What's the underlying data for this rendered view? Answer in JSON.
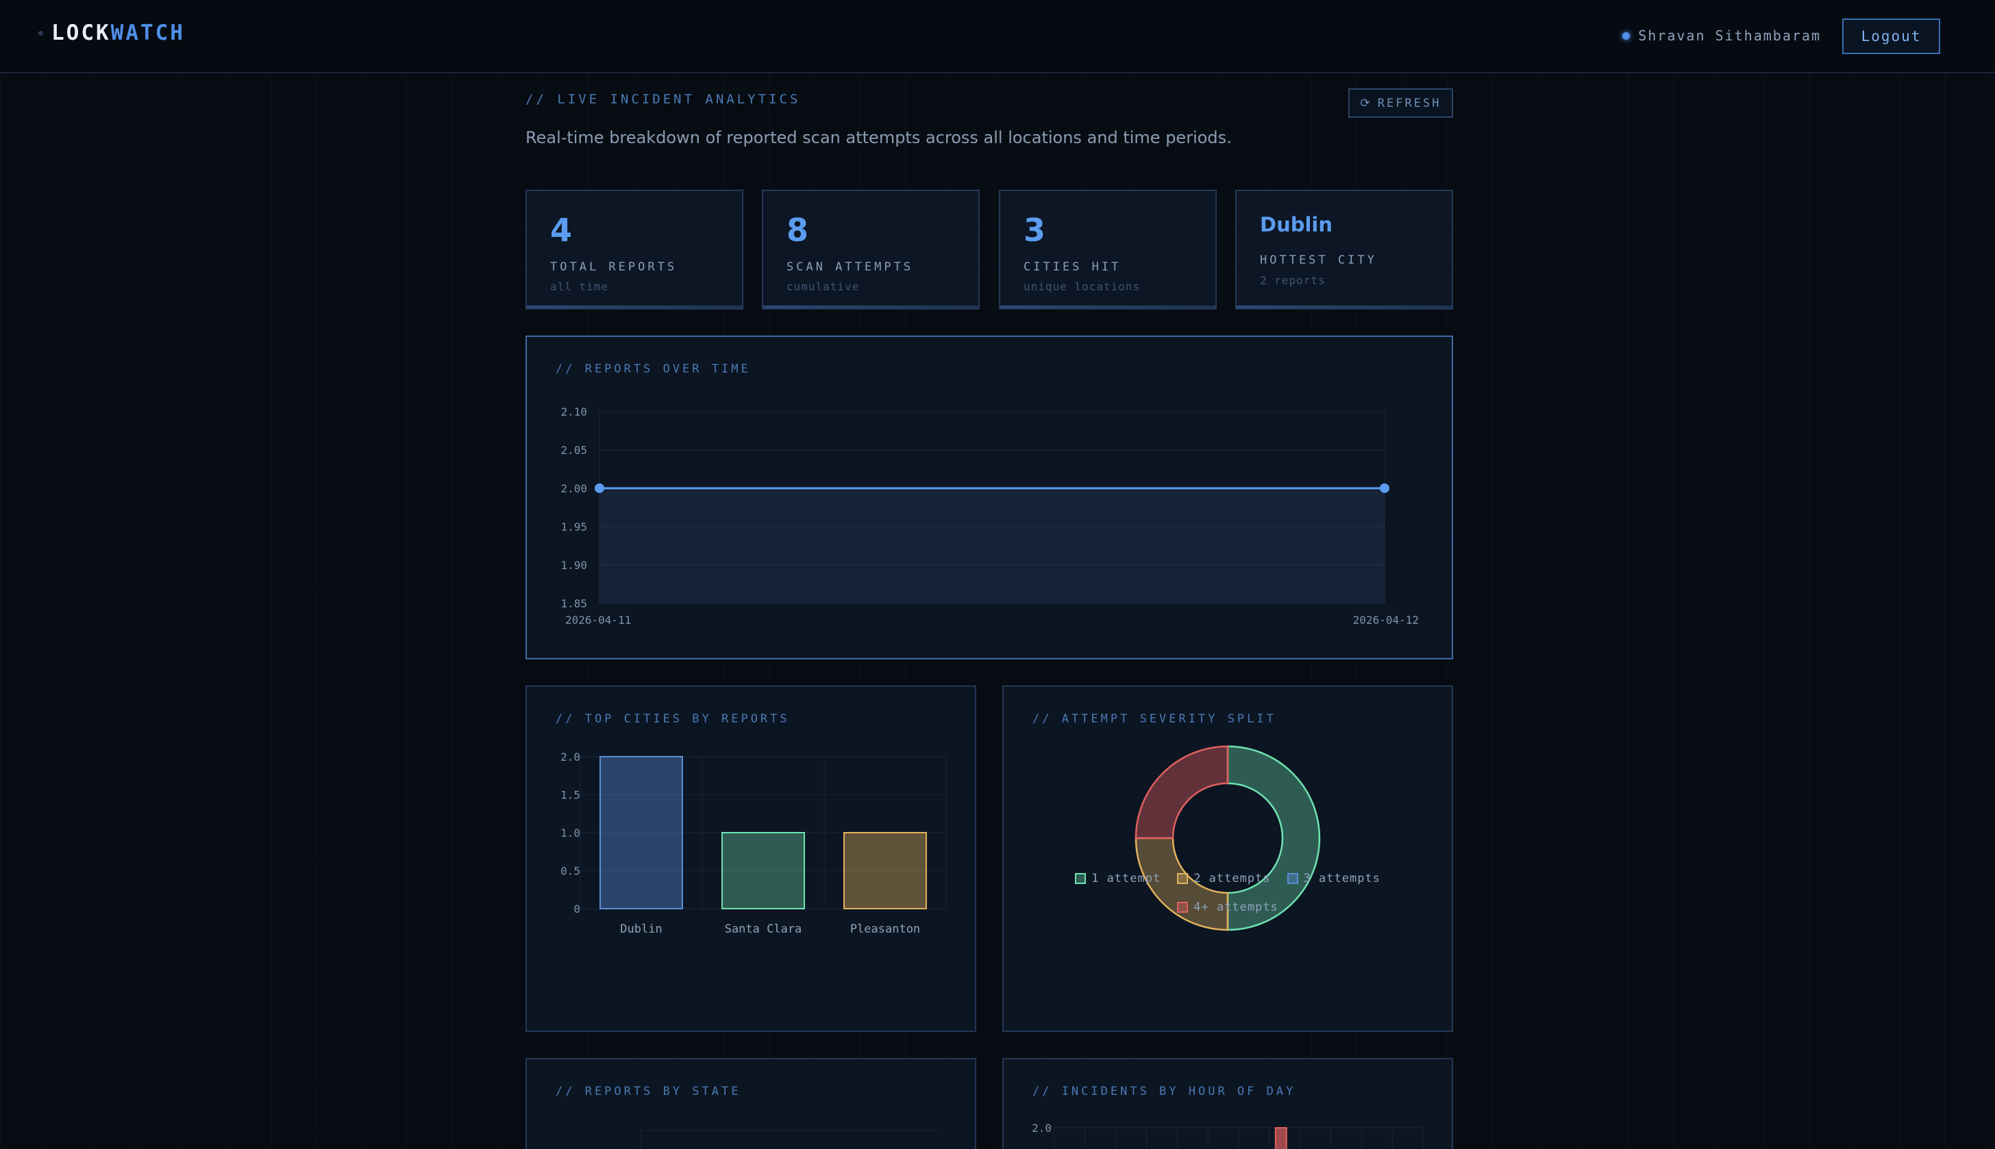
{
  "app": {
    "brand_left": "LOCK",
    "brand_right": "WATCH",
    "user_name": "Shravan Sithambaram",
    "logout_label": "Logout"
  },
  "header": {
    "section_label": "// LIVE INCIDENT ANALYTICS",
    "subtitle": "Real-time breakdown of reported scan attempts across all locations and time periods.",
    "refresh_label": "REFRESH",
    "refresh_icon": "refresh-icon"
  },
  "stats": [
    {
      "value": "4",
      "label": "TOTAL REPORTS",
      "sub": "all time"
    },
    {
      "value": "8",
      "label": "SCAN ATTEMPTS",
      "sub": "cumulative"
    },
    {
      "value": "3",
      "label": "CITIES HIT",
      "sub": "unique locations"
    },
    {
      "value": "Dublin",
      "label": "HOTTEST CITY",
      "sub": "2 reports"
    }
  ],
  "panels": {
    "over_time_title": "// REPORTS OVER TIME",
    "cities_title": "// TOP CITIES BY REPORTS",
    "severity_title": "// ATTEMPT SEVERITY SPLIT",
    "state_title": "// REPORTS BY STATE",
    "hour_title": "// INCIDENTS BY HOUR OF DAY"
  },
  "colors": {
    "accent": "#5b9cf0",
    "green": "#6fe3b0",
    "amber": "#e2b25c",
    "blue": "#5b8fd6",
    "red": "#e0605f"
  },
  "chart_data": [
    {
      "type": "line",
      "title": "// REPORTS OVER TIME",
      "x": [
        "2026-04-11",
        "2026-04-12"
      ],
      "series": [
        {
          "values": [
            2,
            2
          ]
        }
      ],
      "yticks": [
        "2.10",
        "2.05",
        "2.00",
        "1.95",
        "1.90",
        "1.85"
      ],
      "ylim": [
        1.85,
        2.1
      ],
      "grid": true
    },
    {
      "type": "bar",
      "title": "// TOP CITIES BY REPORTS",
      "categories": [
        "Dublin",
        "Santa Clara",
        "Pleasanton"
      ],
      "values": [
        2,
        1,
        1
      ],
      "yticks": [
        "2.0",
        "1.5",
        "1.0",
        "0.5",
        "0"
      ],
      "ylim": [
        0,
        2
      ],
      "grid": true
    },
    {
      "type": "pie",
      "title": "// ATTEMPT SEVERITY SPLIT",
      "categories": [
        "1 attempt",
        "2 attempts",
        "3 attempts",
        "4+ attempts"
      ],
      "values": [
        2,
        1,
        0,
        1
      ],
      "legend": "bottom"
    },
    {
      "type": "bar",
      "title": "// INCIDENTS BY HOUR OF DAY",
      "yticks": [
        "2.0"
      ],
      "ylim": [
        0,
        2
      ],
      "grid": true
    }
  ]
}
